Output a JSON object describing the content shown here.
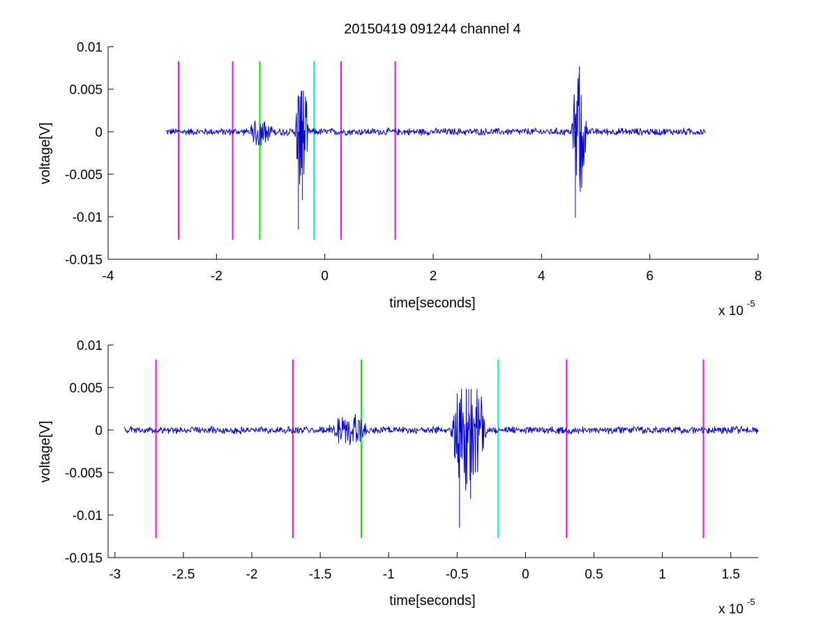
{
  "figure": {
    "title": "20150419 091244 channel 4"
  },
  "colors": {
    "trace": "#0000cc",
    "magenta": "#ff00ff",
    "green": "#00ee00",
    "cyan": "#00eeee"
  },
  "chart_data": [
    {
      "type": "line",
      "title": "20150419 091244 channel 4",
      "xlabel": "time[seconds]",
      "ylabel": "voltage[V]",
      "x_multiplier_label": "x 10",
      "x_multiplier_exponent": "-5",
      "xlim": [
        -4,
        8
      ],
      "ylim": [
        -0.015,
        0.01
      ],
      "xticks": [
        "-4",
        "-2",
        "0",
        "2",
        "4",
        "6",
        "8"
      ],
      "xtick_values": [
        -4,
        -2,
        0,
        2,
        4,
        6,
        8
      ],
      "yticks": [
        "0.01",
        "0.005",
        "0",
        "-0.005",
        "-0.01",
        "-0.015"
      ],
      "ytick_values": [
        0.01,
        0.005,
        0,
        -0.005,
        -0.01,
        -0.015
      ],
      "grid": false,
      "series": [
        {
          "color": "blue",
          "x_range": [
            -2.93,
            7.02
          ],
          "baseline": 0,
          "noise_amplitude": 0.0004,
          "bursts": [
            {
              "x": [
                -1.4,
                -0.95
              ],
              "amplitude": 0.0018
            },
            {
              "x": [
                -0.55,
                -0.3
              ],
              "amplitude": 0.0075,
              "peak_min": -0.0115,
              "peak_max": 0.0048
            },
            {
              "x": [
                4.55,
                4.85
              ],
              "amplitude": 0.0075,
              "peak_min": -0.0101,
              "peak_max": 0.0077
            }
          ]
        }
      ],
      "vertical_markers": [
        {
          "x": -2.7,
          "color": "magenta",
          "y_range": [
            -0.0127,
            0.0083
          ]
        },
        {
          "x": -1.7,
          "color": "magenta",
          "y_range": [
            -0.0127,
            0.0083
          ]
        },
        {
          "x": -1.2,
          "color": "green",
          "y_range": [
            -0.0127,
            0.0083
          ]
        },
        {
          "x": -0.2,
          "color": "cyan",
          "y_range": [
            -0.0127,
            0.0083
          ]
        },
        {
          "x": 0.3,
          "color": "magenta",
          "y_range": [
            -0.0127,
            0.0083
          ]
        },
        {
          "x": 1.3,
          "color": "magenta",
          "y_range": [
            -0.0127,
            0.0083
          ]
        }
      ]
    },
    {
      "type": "line",
      "xlabel": "time[seconds]",
      "ylabel": "voltage[V]",
      "x_multiplier_label": "x 10",
      "x_multiplier_exponent": "-5",
      "xlim": [
        -3.05,
        1.7
      ],
      "ylim": [
        -0.015,
        0.01
      ],
      "xticks": [
        "-3",
        "-2.5",
        "-2",
        "-1.5",
        "-1",
        "-0.5",
        "0",
        "0.5",
        "1",
        "1.5"
      ],
      "xtick_values": [
        -3,
        -2.5,
        -2,
        -1.5,
        -1,
        -0.5,
        0,
        0.5,
        1,
        1.5
      ],
      "yticks": [
        "0.01",
        "0.005",
        "0",
        "-0.005",
        "-0.01",
        "-0.015"
      ],
      "ytick_values": [
        0.01,
        0.005,
        0,
        -0.005,
        -0.01,
        -0.015
      ],
      "grid": false,
      "series": [
        {
          "color": "blue",
          "x_range": [
            -2.93,
            1.7
          ],
          "baseline": 0,
          "noise_amplitude": 0.0004,
          "bursts": [
            {
              "x": [
                -1.45,
                -1.15
              ],
              "amplitude": 0.0018
            },
            {
              "x": [
                -0.55,
                -0.28
              ],
              "amplitude": 0.0075,
              "peak_min": -0.0115,
              "peak_max": 0.0048
            }
          ]
        }
      ],
      "vertical_markers": [
        {
          "x": -2.7,
          "color": "magenta",
          "y_range": [
            -0.0127,
            0.0083
          ]
        },
        {
          "x": -1.7,
          "color": "magenta",
          "y_range": [
            -0.0127,
            0.0083
          ]
        },
        {
          "x": -1.2,
          "color": "green",
          "y_range": [
            -0.0127,
            0.0083
          ]
        },
        {
          "x": -0.2,
          "color": "cyan",
          "y_range": [
            -0.0127,
            0.0083
          ]
        },
        {
          "x": 0.3,
          "color": "magenta",
          "y_range": [
            -0.0127,
            0.0083
          ]
        },
        {
          "x": 1.3,
          "color": "magenta",
          "y_range": [
            -0.0127,
            0.0083
          ]
        }
      ]
    }
  ]
}
